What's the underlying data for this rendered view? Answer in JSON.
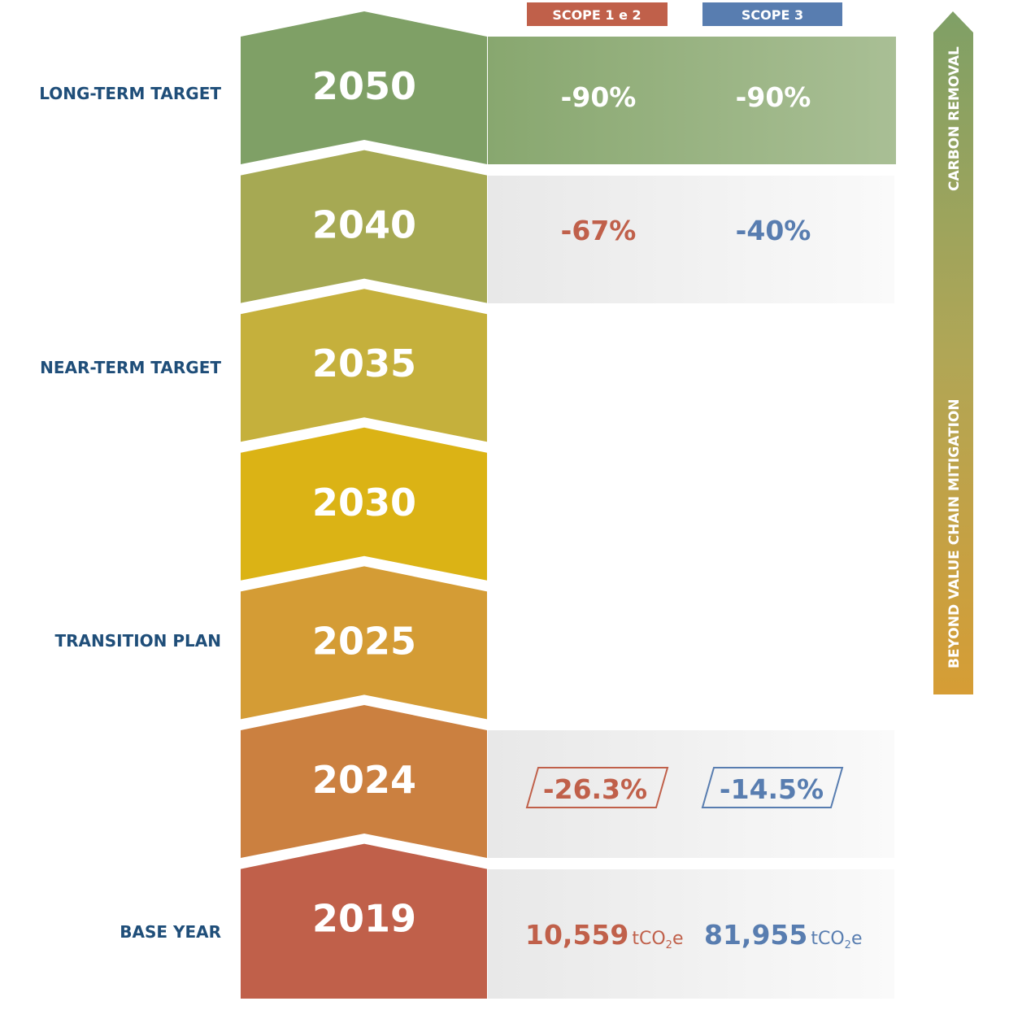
{
  "legend": {
    "scope12": "SCOPE 1 e 2",
    "scope3": "SCOPE 3"
  },
  "colors": {
    "scope12": "#c0604a",
    "scope3": "#587db0",
    "label": "#1f4e79"
  },
  "labels": {
    "long_term": "LONG-TERM TARGET",
    "near_term": "NEAR-TERM TARGET",
    "transition": "TRANSITION PLAN",
    "base": "BASE YEAR"
  },
  "years": [
    {
      "year": "2050",
      "color": "#7fa066"
    },
    {
      "year": "2040",
      "color": "#a6a953"
    },
    {
      "year": "2035",
      "color": "#c5b03c"
    },
    {
      "year": "2030",
      "color": "#dbb315"
    },
    {
      "year": "2025",
      "color": "#d49c35"
    },
    {
      "year": "2024",
      "color": "#cb8040"
    },
    {
      "year": "2019",
      "color": "#c0604a"
    }
  ],
  "values": {
    "y2050": {
      "scope12": "-90%",
      "scope3": "-90%"
    },
    "y2040": {
      "scope12": "-67%",
      "scope3": "-40%"
    },
    "y2024": {
      "scope12": "-26.3%",
      "scope3": "-14.5%"
    },
    "y2019": {
      "scope12": "10,559",
      "scope3": "81,955",
      "unit_prefix": "tCO",
      "unit_sub": "2",
      "unit_suffix": "e"
    }
  },
  "arrow": {
    "top_label": "CARBON REMOVAL",
    "bottom_label": "BEYOND VALUE CHAIN MITIGATION"
  }
}
